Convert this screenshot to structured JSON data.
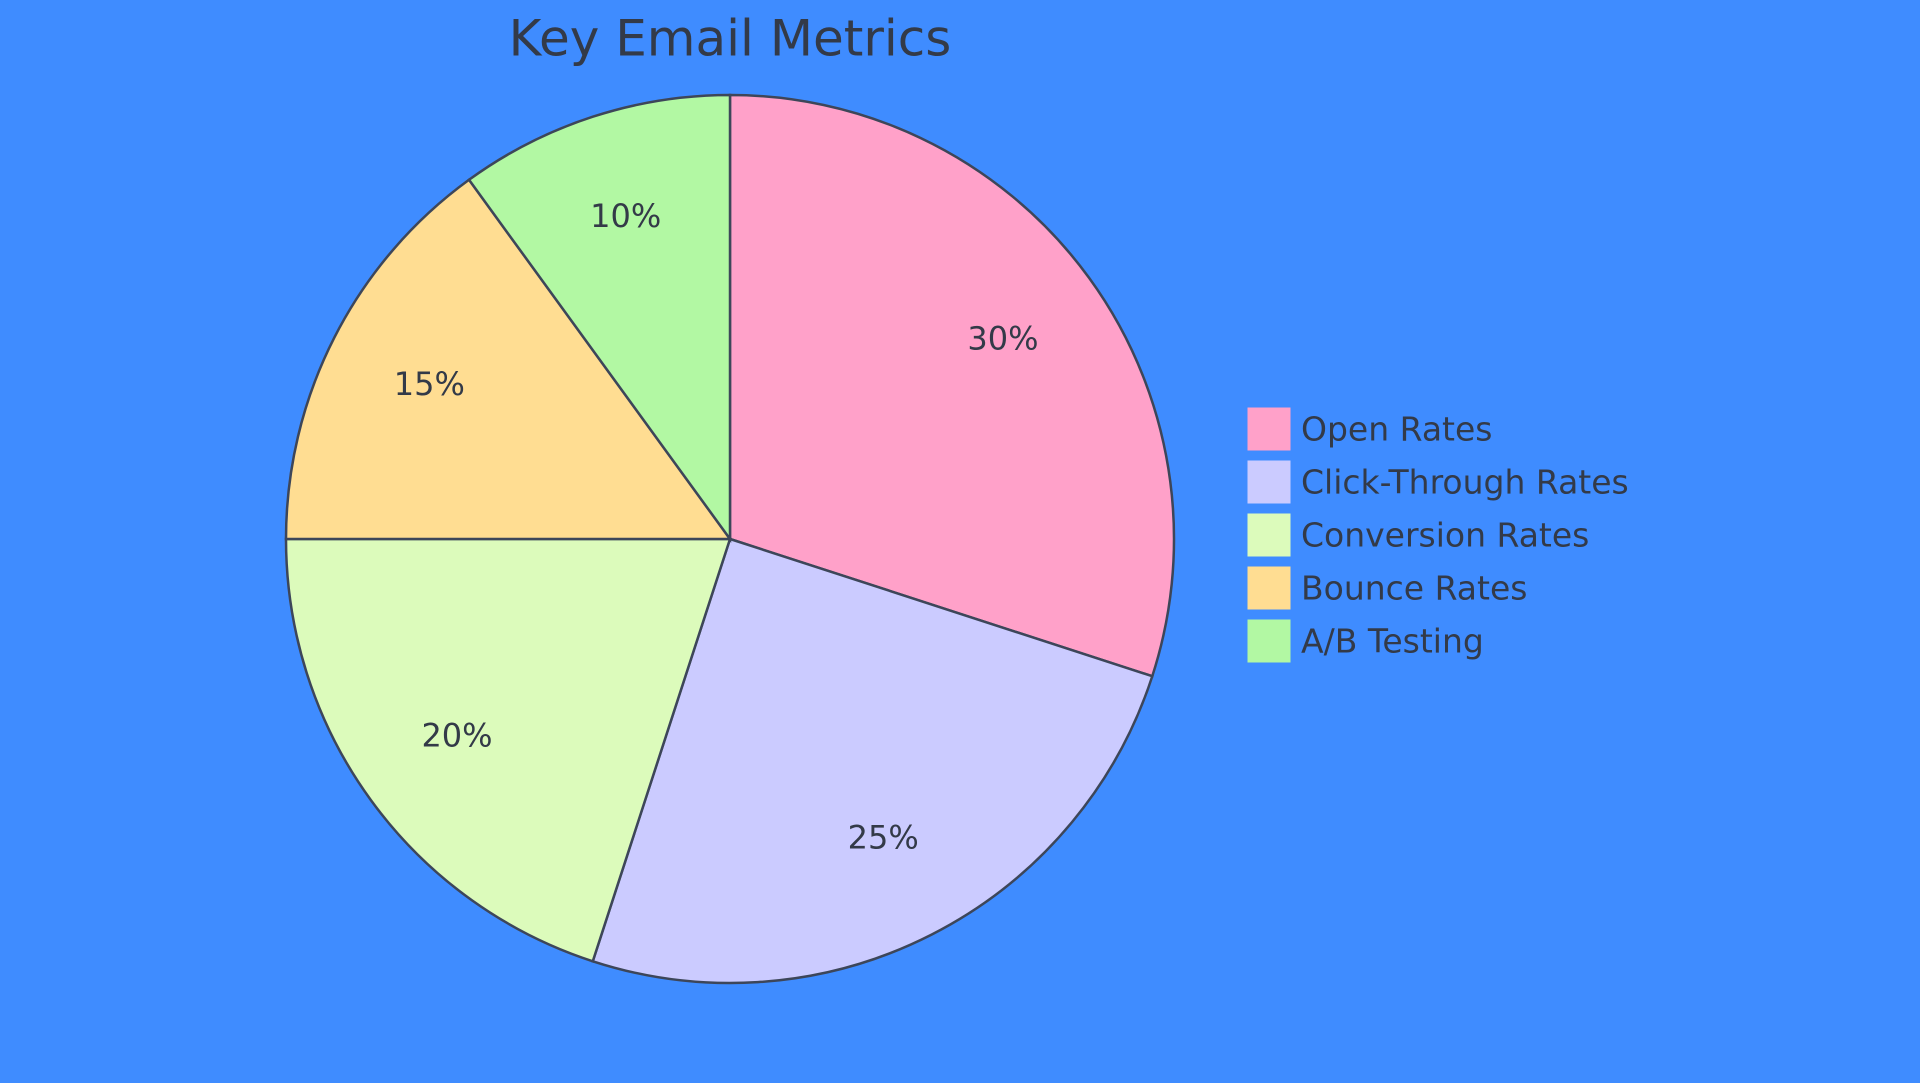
{
  "chart_data": {
    "type": "pie",
    "title": "Key Email Metrics",
    "categories": [
      "Open Rates",
      "Click-Through Rates",
      "Conversion Rates",
      "Bounce Rates",
      "A/B Testing"
    ],
    "values": [
      30,
      25,
      20,
      15,
      10
    ],
    "value_labels": [
      "30%",
      "25%",
      "20%",
      "15%",
      "10%"
    ],
    "colors": [
      "#ffa1c9",
      "#cbcbff",
      "#dcfbbb",
      "#ffdd92",
      "#b2f8a3"
    ],
    "legend": "right"
  }
}
